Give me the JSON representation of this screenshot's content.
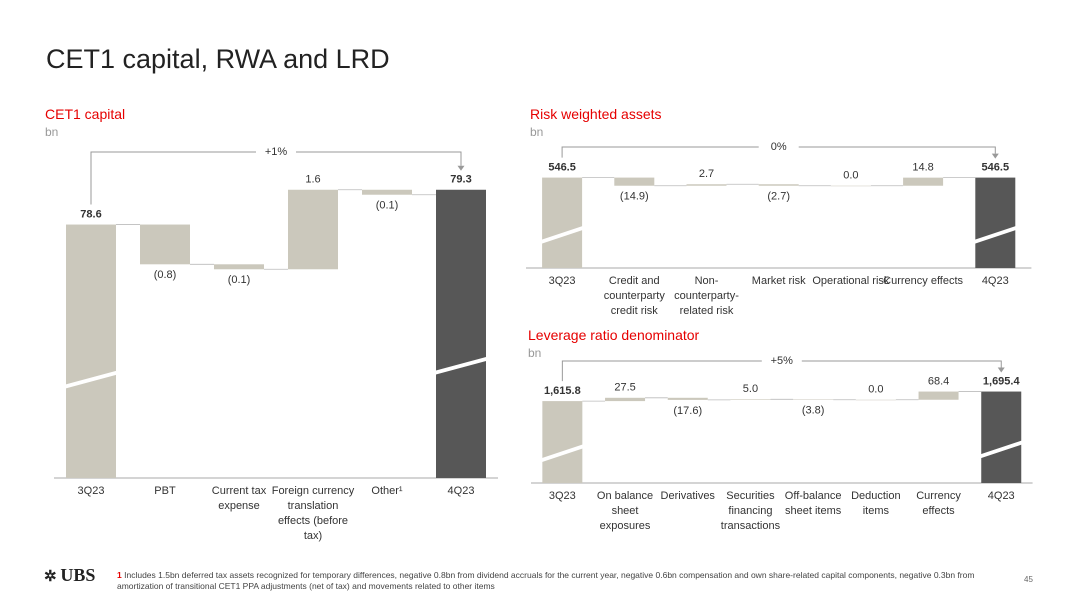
{
  "header": {
    "title": "CET1 capital, RWA and LRD"
  },
  "chart_data": [
    {
      "type": "waterfall",
      "title": "CET1 capital",
      "subtitle": "bn",
      "change_label": "+1%",
      "categories": [
        "3Q23",
        "PBT",
        "Current tax expense",
        "Foreign currency translation effects (before tax)",
        "Other¹",
        "4Q23"
      ],
      "values": [
        78.6,
        -0.8,
        -0.1,
        1.6,
        -0.1,
        79.3
      ],
      "value_labels": [
        "78.6",
        "(0.8)",
        "(0.1)",
        "1.6",
        "(0.1)",
        "79.3"
      ],
      "measure": [
        "absolute",
        "relative",
        "relative",
        "relative",
        "relative",
        "absolute"
      ],
      "colors": [
        "#cbc8bc",
        "#cbc8bc",
        "#cbc8bc",
        "#cbc8bc",
        "#cbc8bc",
        "#575757"
      ],
      "ylim": [
        73.5,
        80.1
      ]
    },
    {
      "type": "waterfall",
      "title": "Risk weighted assets",
      "subtitle": "bn",
      "change_label": "0%",
      "categories": [
        "3Q23",
        "Credit and counterparty credit risk",
        "Non-counterparty-related risk",
        "Market risk",
        "Operational risk",
        "Currency effects",
        "4Q23"
      ],
      "values": [
        546.5,
        -14.9,
        2.7,
        -2.7,
        0.0,
        14.8,
        546.5
      ],
      "value_labels": [
        "546.5",
        "(14.9)",
        "2.7",
        "(2.7)",
        "0.0",
        "14.8",
        "546.5"
      ],
      "measure": [
        "absolute",
        "relative",
        "relative",
        "relative",
        "relative",
        "relative",
        "absolute"
      ],
      "colors": [
        "#cbc8bc",
        "#cbc8bc",
        "#cbc8bc",
        "#cbc8bc",
        "#cbc8bc",
        "#cbc8bc",
        "#575757"
      ],
      "ylim": [
        381,
        597
      ]
    },
    {
      "type": "waterfall",
      "title": "Leverage ratio denominator",
      "subtitle": "bn",
      "change_label": "+5%",
      "categories": [
        "3Q23",
        "On balance sheet exposures",
        "Derivatives",
        "Securities financing transactions",
        "Off-balance sheet items",
        "Deduction items",
        "Currency effects",
        "4Q23"
      ],
      "values": [
        1615.8,
        27.5,
        -17.6,
        5.0,
        -3.8,
        0.0,
        68.4,
        1695.4
      ],
      "value_labels": [
        "1,615.8",
        "27.5",
        "(17.6)",
        "5.0",
        "(3.8)",
        "0.0",
        "68.4",
        "1,695.4"
      ],
      "measure": [
        "absolute",
        "relative",
        "relative",
        "relative",
        "relative",
        "relative",
        "relative",
        "absolute"
      ],
      "colors": [
        "#cbc8bc",
        "#cbc8bc",
        "#cbc8bc",
        "#cbc8bc",
        "#cbc8bc",
        "#cbc8bc",
        "#cbc8bc",
        "#575757"
      ],
      "ylim": [
        933,
        1875
      ]
    }
  ],
  "footer": {
    "logo": "UBS",
    "footnote_marker": "1",
    "footnote": "Includes 1.5bn deferred tax assets recognized for temporary differences, negative 0.8bn from dividend accruals for the current year, negative 0.6bn compensation and own share-related capital components, negative 0.3bn from amortization of transitional CET1 PPA adjustments (net of tax) and movements related to other items",
    "page_number": "45"
  }
}
